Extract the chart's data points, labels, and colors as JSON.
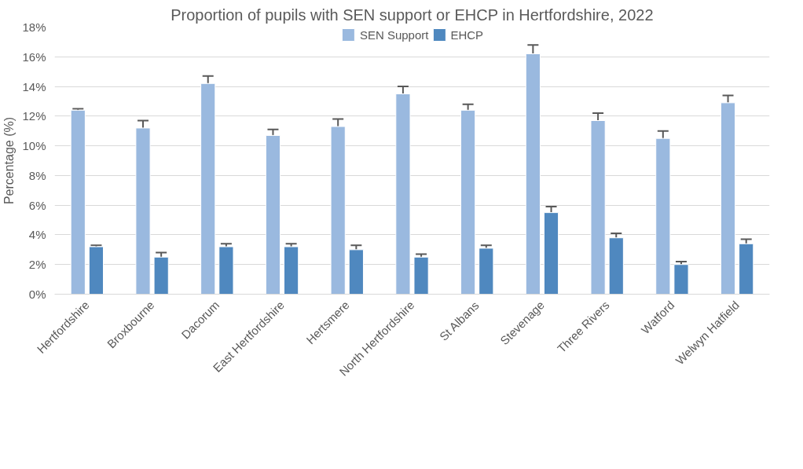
{
  "chart_data": {
    "type": "bar",
    "title": "Proportion of pupils with SEN support or EHCP in Hertfordshire, 2022",
    "ylabel": "Percentage (%)",
    "categories": [
      "Hertfordshire",
      "Broxbourne",
      "Dacorum",
      "East Hertfordshire",
      "Hertsmere",
      "North Hertfordshire",
      "St Albans",
      "Stevenage",
      "Three Rivers",
      "Watford",
      "Welwyn Hatfield"
    ],
    "series": [
      {
        "name": "SEN Support",
        "color": "#9ab9df",
        "values": [
          12.4,
          11.2,
          14.2,
          10.7,
          11.3,
          13.5,
          12.4,
          16.2,
          11.7,
          10.5,
          12.9
        ],
        "errors": [
          0.1,
          0.5,
          0.5,
          0.4,
          0.5,
          0.5,
          0.4,
          0.6,
          0.5,
          0.5,
          0.5
        ]
      },
      {
        "name": "EHCP",
        "color": "#4f88bf",
        "values": [
          3.2,
          2.5,
          3.2,
          3.2,
          3.0,
          2.5,
          3.1,
          5.5,
          3.8,
          2.0,
          3.4
        ],
        "errors": [
          0.1,
          0.3,
          0.2,
          0.2,
          0.3,
          0.2,
          0.2,
          0.4,
          0.3,
          0.2,
          0.3
        ]
      }
    ],
    "ylim": [
      0,
      18
    ],
    "yticks": [
      {
        "value": 0,
        "label": "0%"
      },
      {
        "value": 2,
        "label": "2%"
      },
      {
        "value": 4,
        "label": "4%"
      },
      {
        "value": 6,
        "label": "6%"
      },
      {
        "value": 8,
        "label": "8%"
      },
      {
        "value": 10,
        "label": "10%"
      },
      {
        "value": 12,
        "label": "12%"
      },
      {
        "value": 14,
        "label": "14%"
      },
      {
        "value": 16,
        "label": "16%"
      },
      {
        "value": 18,
        "label": "18%"
      }
    ],
    "grid": "y",
    "legend": "top"
  }
}
